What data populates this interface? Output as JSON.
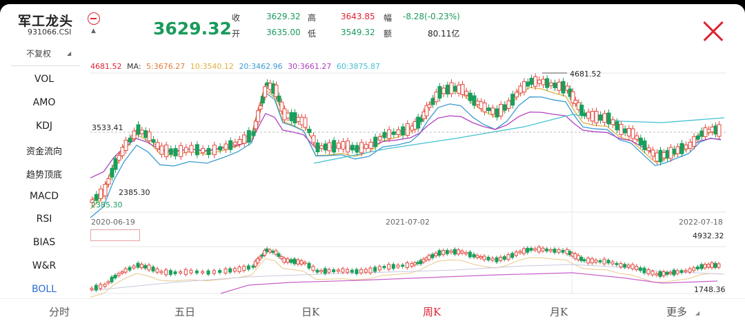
{
  "header": {
    "name": "军工龙头",
    "code": "931066.CSI",
    "price": "3629.32",
    "quote": [
      {
        "label": "收",
        "value": "3629.32",
        "color": "green"
      },
      {
        "label": "高",
        "value": "3643.85",
        "color": "red"
      },
      {
        "label": "幅",
        "value": "-8.28(-0.23%)",
        "color": "green"
      },
      {
        "label": "开",
        "value": "3635.00",
        "color": "green"
      },
      {
        "label": "低",
        "value": "3549.32",
        "color": "green"
      },
      {
        "label": "额",
        "value": "80.11亿",
        "color": "black"
      }
    ]
  },
  "sidebar": {
    "adjust": "不复权",
    "items": [
      "VOL",
      "AMO",
      "KDJ",
      "资金流向",
      "趋势顶底",
      "MACD",
      "RSI",
      "BIAS",
      "W&R",
      "BOLL"
    ]
  },
  "chart": {
    "ma_line": {
      "price": "4681.52",
      "ma_label": "MA:",
      "items": [
        {
          "text": "5:3676.27",
          "color": "#e07a3a"
        },
        {
          "text": "10:3540.12",
          "color": "#e0b040"
        },
        {
          "text": "20:3462.96",
          "color": "#3a9ad0"
        },
        {
          "text": "30:3661.27",
          "color": "#b040c0"
        },
        {
          "text": "60:3875.87",
          "color": "#40c0d0"
        }
      ]
    },
    "high_label": "4681.52",
    "ref_price": "3533.41",
    "low_label": "2385.30",
    "low_axis": "2385.30",
    "dates": [
      "2020-06-19",
      "2021-07-02",
      "2022-07-18"
    ],
    "sub_max": "4932.32",
    "sub_min": "1748.36",
    "colors": {
      "up": "#e5483f",
      "down": "#17a05d",
      "accent": "#d23"
    }
  },
  "tabs": [
    "分时",
    "五日",
    "日K",
    "周K",
    "月K",
    "更多"
  ],
  "active_tab": "周K"
}
